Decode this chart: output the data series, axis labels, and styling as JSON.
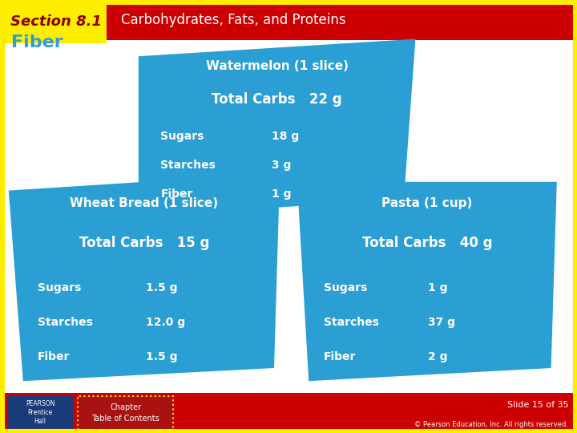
{
  "title_section": "Section 8.1",
  "title_main": "Carbohydrates, Fats, and Proteins",
  "slide_label": "Fiber",
  "bg_color": "#f0f0f0",
  "header_red": "#cc0000",
  "header_yellow": "#ffee00",
  "footer_red": "#cc0000",
  "blue_card_light": "#2b9fd4",
  "blue_card_dark": "#1a8ec4",
  "slide_text": "Slide 15 of 35",
  "copyright_text": "© Pearson Education, Inc. All rights reserved.",
  "chapter_text": "Chapter\nTable of Contents",
  "watermelon": {
    "name": "Watermelon (1 slice)",
    "total_label": "Total Carbs",
    "total_value": "22 g",
    "items": [
      [
        "Sugars",
        "18 g"
      ],
      [
        "Starches",
        "3 g"
      ],
      [
        "Fiber",
        "1 g"
      ]
    ],
    "tl": [
      0.24,
      0.87
    ],
    "tr": [
      0.72,
      0.91
    ],
    "br": [
      0.7,
      0.54
    ],
    "bl": [
      0.24,
      0.5
    ]
  },
  "wheat": {
    "name": "Wheat Bread (1 slice)",
    "total_label": "Total Carbs",
    "total_value": "15 g",
    "items": [
      [
        "Sugars",
        "1.5 g"
      ],
      [
        "Starches",
        "12.0 g"
      ],
      [
        "Fiber",
        "1.5 g"
      ]
    ],
    "tl": [
      0.015,
      0.56
    ],
    "tr": [
      0.485,
      0.6
    ],
    "br": [
      0.475,
      0.15
    ],
    "bl": [
      0.04,
      0.12
    ]
  },
  "pasta": {
    "name": "Pasta (1 cup)",
    "total_label": "Total Carbs",
    "total_value": "40 g",
    "items": [
      [
        "Sugars",
        "1 g"
      ],
      [
        "Starches",
        "37 g"
      ],
      [
        "Fiber",
        "2 g"
      ]
    ],
    "tl": [
      0.515,
      0.58
    ],
    "tr": [
      0.965,
      0.58
    ],
    "br": [
      0.955,
      0.15
    ],
    "bl": [
      0.535,
      0.12
    ]
  }
}
